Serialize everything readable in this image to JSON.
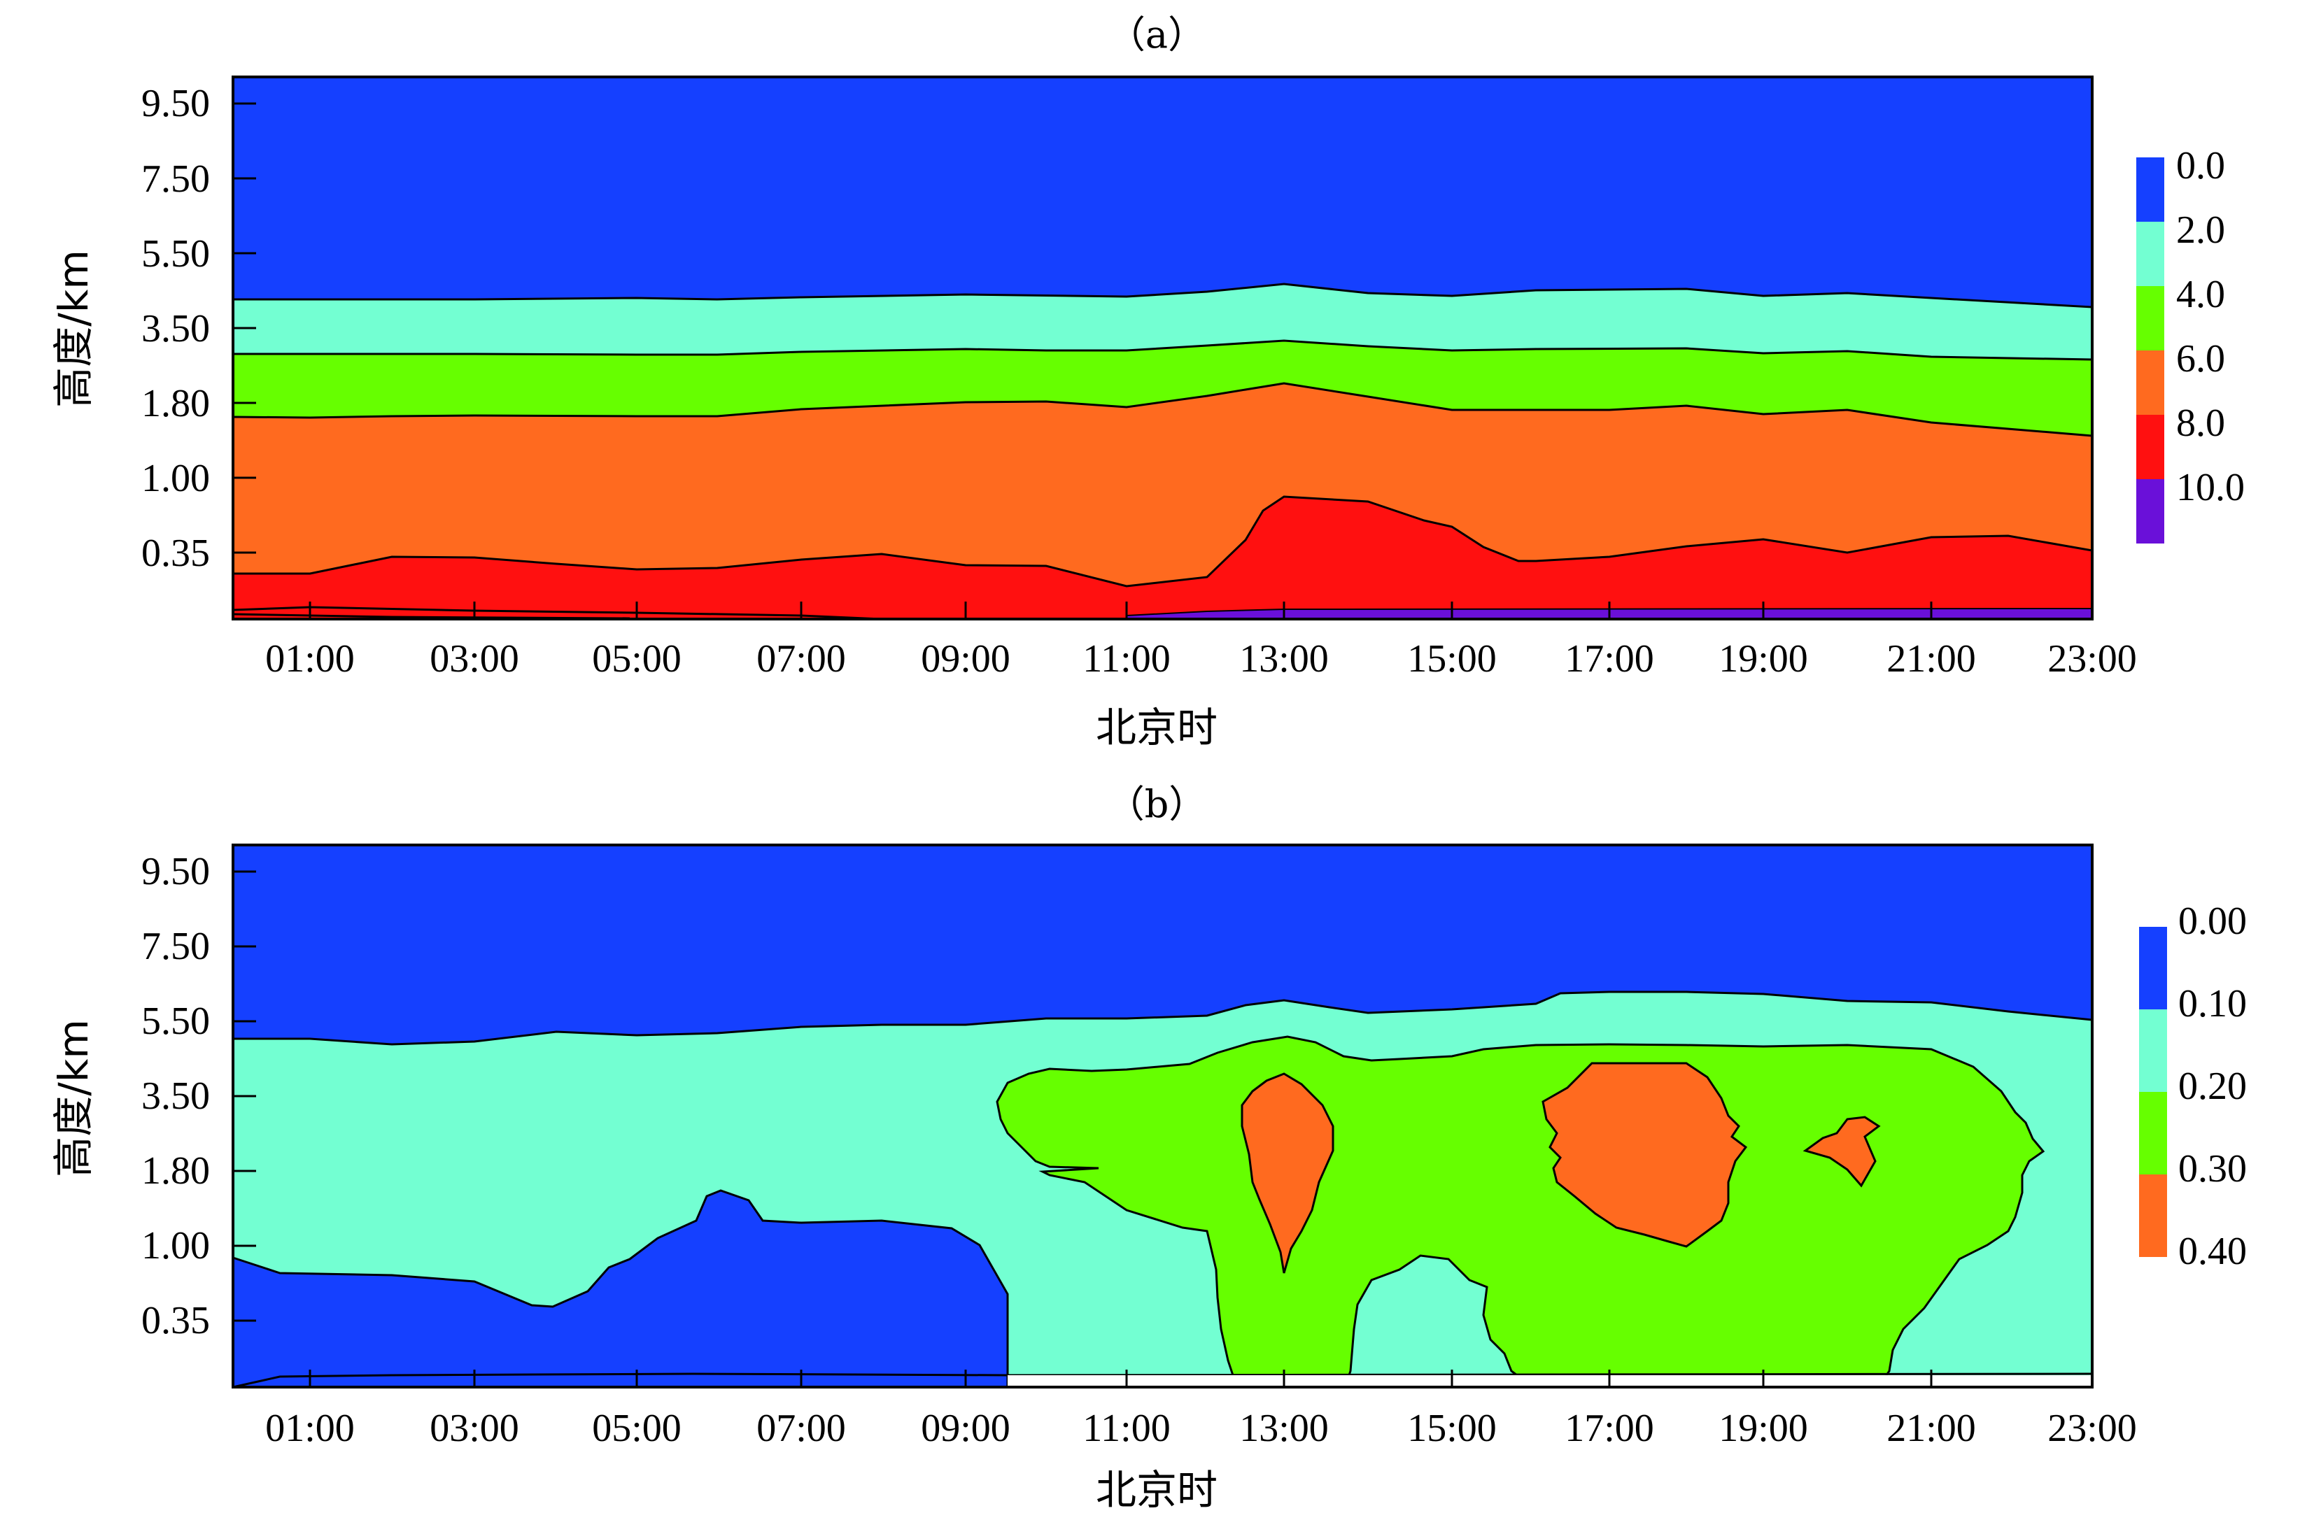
{
  "chart_data": [
    {
      "type": "heatmap",
      "title": "（a）",
      "xlabel": "北京时",
      "ylabel": "高度/km",
      "xticks": [
        "01:00",
        "03:00",
        "05:00",
        "07:00",
        "09:00",
        "11:00",
        "13:00",
        "15:00",
        "17:00",
        "19:00",
        "21:00",
        "23:00"
      ],
      "yticks": [
        "9.50",
        "7.50",
        "5.50",
        "3.50",
        "1.80",
        "1.00",
        "0.35"
      ],
      "legend": {
        "levels": [
          "0.0",
          "2.0",
          "4.0",
          "6.0",
          "8.0",
          "10.0"
        ],
        "colors": [
          "#1540ff",
          "#73ffd2",
          "#66ff00",
          "#ff6a1f",
          "#ff1010",
          "#6a10d9"
        ]
      },
      "x": [
        0,
        1,
        2,
        3,
        4,
        5,
        6,
        7,
        8,
        9,
        10,
        11,
        12,
        13,
        14,
        15,
        16,
        17,
        18,
        19,
        20,
        21,
        22,
        23
      ],
      "contours": [
        {
          "level": "2.0",
          "height": [
            4.5,
            4.5,
            4.5,
            4.5,
            4.55,
            4.55,
            4.5,
            4.65,
            4.75,
            4.8,
            4.8,
            4.7,
            5.0,
            5.4,
            5.05,
            4.85,
            5.05,
            5.2,
            5.25,
            4.75,
            4.95,
            4.6,
            4.4,
            4.2
          ]
        },
        {
          "level": "4.0",
          "height": [
            2.9,
            2.9,
            2.9,
            2.9,
            2.9,
            2.9,
            2.9,
            3.0,
            3.05,
            3.1,
            3.15,
            3.05,
            3.3,
            3.55,
            3.3,
            3.05,
            3.1,
            3.15,
            3.15,
            2.95,
            3.05,
            2.8,
            2.75,
            2.7
          ]
        },
        {
          "level": "6.0",
          "height": [
            1.5,
            1.5,
            1.55,
            1.55,
            1.55,
            1.55,
            1.55,
            1.65,
            1.7,
            1.8,
            1.8,
            1.7,
            1.85,
            2.2,
            1.85,
            1.6,
            1.6,
            1.6,
            1.65,
            1.5,
            1.6,
            1.35,
            1.25,
            1.1
          ]
        },
        {
          "level": "8.0",
          "height": [
            0.12,
            0.12,
            0.3,
            0.3,
            0.24,
            0.2,
            0.22,
            0.3,
            0.36,
            0.24,
            0.22,
            0.04,
            0.12,
            0.8,
            0.75,
            0.6,
            0.3,
            0.3,
            0.42,
            0.45,
            0.34,
            0.48,
            0.5,
            0.35
          ]
        },
        {
          "level": "10.0",
          "height": [
            0,
            0,
            0,
            0,
            0,
            0,
            0,
            0,
            0,
            0,
            0,
            0,
            0,
            0.05,
            0.05,
            0.05,
            0.05,
            0.05,
            0.05,
            0.05,
            0.05,
            0.05,
            0.05,
            0.05
          ]
        }
      ]
    },
    {
      "type": "heatmap",
      "title": "（b）",
      "xlabel": "北京时",
      "ylabel": "高度/km",
      "xticks": [
        "01:00",
        "03:00",
        "05:00",
        "07:00",
        "09:00",
        "11:00",
        "13:00",
        "15:00",
        "17:00",
        "19:00",
        "21:00",
        "23:00"
      ],
      "yticks": [
        "9.50",
        "7.50",
        "5.50",
        "3.50",
        "1.80",
        "1.00",
        "0.35"
      ],
      "legend": {
        "levels": [
          "0.00",
          "0.10",
          "0.20",
          "0.30",
          "0.40"
        ],
        "colors": [
          "#1540ff",
          "#73ffd2",
          "#66ff00",
          "#ff6a1f"
        ]
      },
      "x": [
        0,
        1,
        2,
        3,
        4,
        5,
        6,
        7,
        8,
        9,
        10,
        11,
        12,
        13,
        14,
        15,
        16,
        17,
        18,
        19,
        20,
        21,
        22,
        23
      ],
      "contours": [
        {
          "level": "0.10",
          "description": "upper boundary of 0.10-0.20 region",
          "height": [
            5.05,
            5.05,
            4.9,
            5.0,
            5.15,
            5.1,
            5.15,
            5.3,
            5.35,
            5.35,
            5.55,
            5.55,
            5.6,
            6.1,
            5.75,
            5.85,
            5.95,
            6.2,
            6.2,
            6.15,
            6.0,
            5.85,
            5.6,
            5.45
          ]
        }
      ]
    }
  ]
}
